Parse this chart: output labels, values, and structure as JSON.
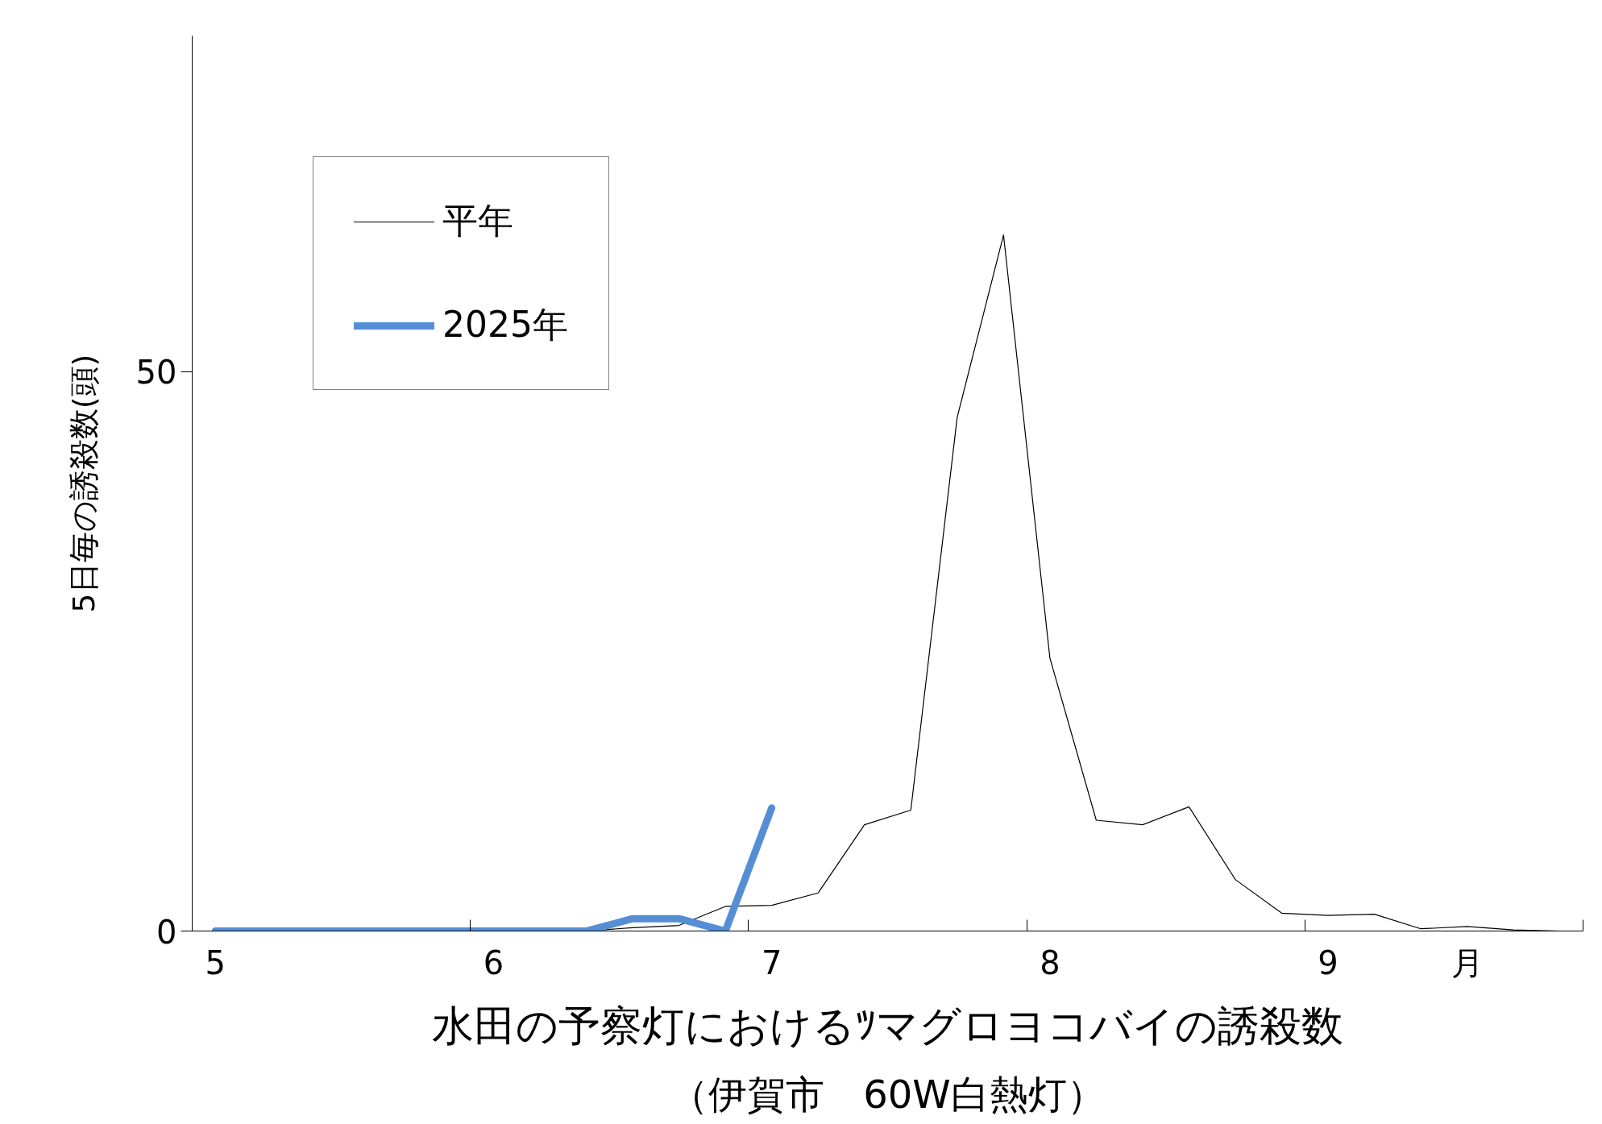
{
  "chart_data": {
    "type": "line",
    "title": "水田の予察灯におけるﾂマグロヨコバイの誘殺数",
    "subtitle": "（伊賀市　60W白熱灯）",
    "ylabel": "5日毎の誘殺数(頭)",
    "categories": [
      "5",
      null,
      null,
      null,
      null,
      null,
      "6",
      null,
      null,
      null,
      null,
      null,
      "7",
      null,
      null,
      null,
      null,
      null,
      "8",
      null,
      null,
      null,
      null,
      null,
      "9",
      null,
      null,
      "月",
      null,
      null
    ],
    "ylim": [
      0,
      80
    ],
    "yticks": [
      0,
      50
    ],
    "grid": false,
    "legend": "top left",
    "marker": "none",
    "series": [
      {
        "name": "平年",
        "color": "#000000",
        "values": [
          0,
          0,
          0,
          0,
          0,
          0,
          0,
          0,
          0,
          0.3,
          0.5,
          2.2,
          2.3,
          3.4,
          9.5,
          10.8,
          45.9,
          62.2,
          24.4,
          9.9,
          9.5,
          11.1,
          4.6,
          1.6,
          1.4,
          1.5,
          0.2,
          0.4,
          0.1,
          0
        ]
      },
      {
        "name": "2025年",
        "color": "#558ed5",
        "values": [
          0,
          0,
          0,
          0,
          0,
          0,
          0,
          0,
          0,
          1.1,
          1.1,
          0,
          11,
          null,
          null,
          null,
          null,
          null,
          null,
          null,
          null,
          null,
          null,
          null,
          null,
          null,
          null,
          null,
          null,
          null
        ]
      }
    ]
  }
}
